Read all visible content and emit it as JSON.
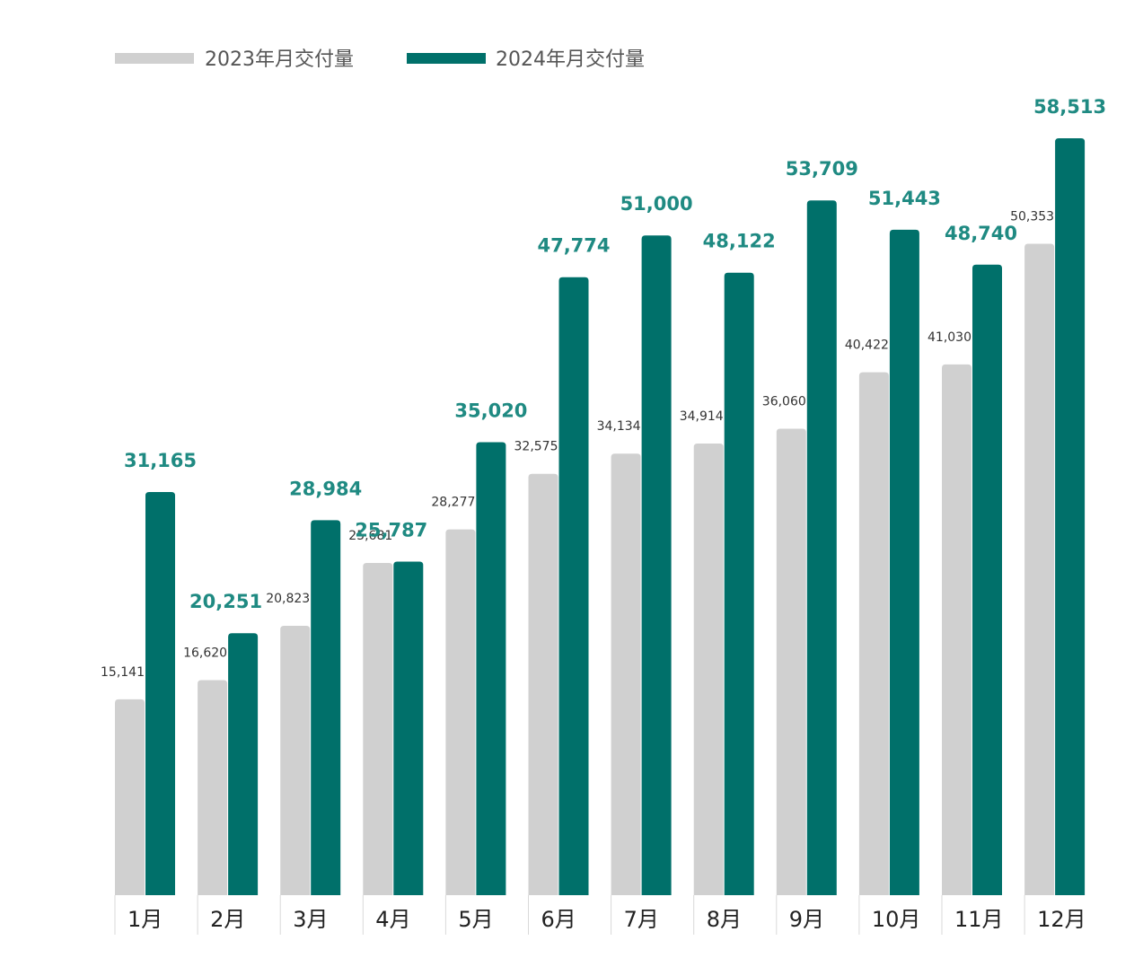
{
  "chart_data": {
    "type": "bar",
    "legend_position": "top-left",
    "grid": false,
    "categories": [
      "1月",
      "2月",
      "3月",
      "4月",
      "5月",
      "6月",
      "7月",
      "8月",
      "9月",
      "10月",
      "11月",
      "12月"
    ],
    "series": [
      {
        "name": "2023年月交付量",
        "color": "#d0d0d0",
        "values": [
          15141,
          16620,
          20823,
          25681,
          28277,
          32575,
          34134,
          34914,
          36060,
          40422,
          41030,
          50353
        ],
        "labels": [
          "15,141",
          "16,620",
          "20,823",
          "25,681",
          "28,277",
          "32,575",
          "34,134",
          "34,914",
          "36,060",
          "40,422",
          "41,030",
          "50,353"
        ]
      },
      {
        "name": "2024年月交付量",
        "color": "#00706a",
        "values": [
          31165,
          20251,
          28984,
          25787,
          35020,
          47774,
          51000,
          48122,
          53709,
          51443,
          48740,
          58513
        ],
        "labels": [
          "31,165",
          "20,251",
          "28,984",
          "25,787",
          "35,020",
          "47,774",
          "51,000",
          "48,122",
          "53,709",
          "51,443",
          "48,740",
          "58,513"
        ]
      }
    ],
    "label_color_2024": "#1f8a82",
    "label_color_2023": "#333333",
    "tick_color": "#222222",
    "ylim": [
      0,
      58513
    ]
  }
}
